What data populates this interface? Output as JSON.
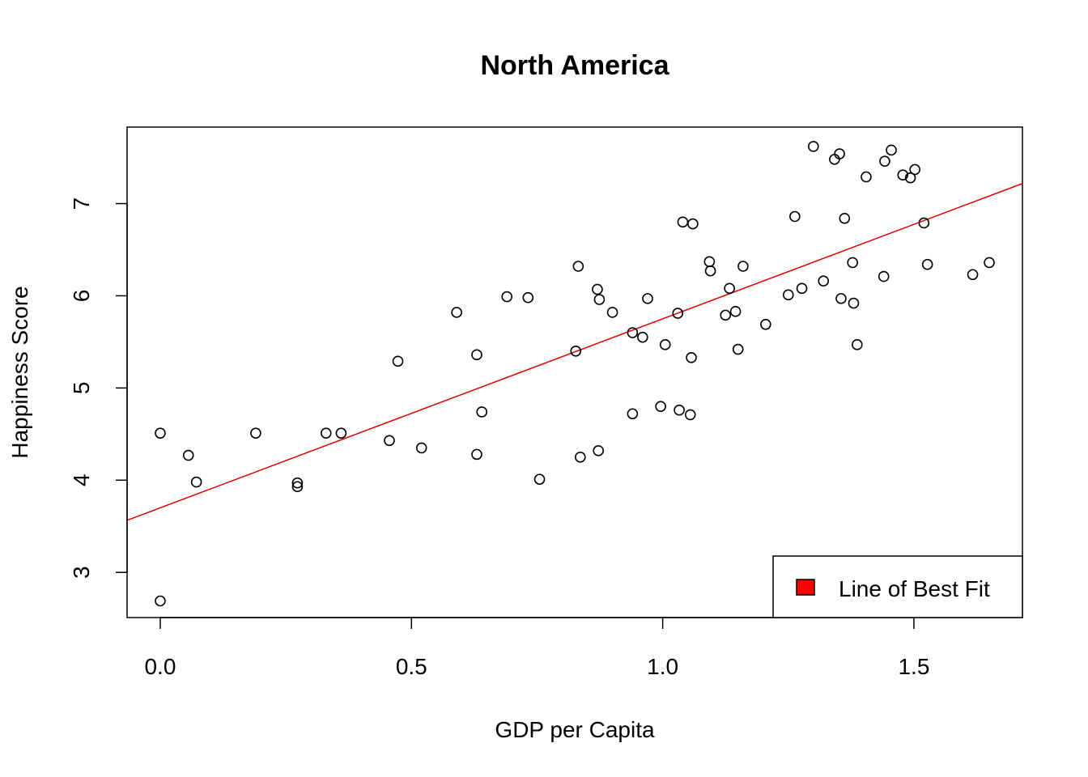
{
  "chart_data": {
    "type": "scatter",
    "title": "North America",
    "xlabel": "GDP per Capita",
    "ylabel": "Happiness Score",
    "xlim": [
      -0.066,
      1.716
    ],
    "ylim": [
      2.51,
      7.83
    ],
    "x_ticks": [
      0.0,
      0.5,
      1.0,
      1.5
    ],
    "x_tick_labels": [
      "0.0",
      "0.5",
      "1.0",
      "1.5"
    ],
    "y_ticks": [
      3,
      4,
      5,
      6,
      7
    ],
    "y_tick_labels": [
      "3",
      "4",
      "5",
      "6",
      "7"
    ],
    "grid": false,
    "legend": {
      "placement": "bottom-right",
      "entries": [
        {
          "label": "Line of Best Fit",
          "color": "#ff0000"
        }
      ]
    },
    "fit_line": {
      "intercept": 3.7,
      "slope": 2.05,
      "color": "#dd0000"
    },
    "points_x": [
      0.0,
      0.0,
      0.056,
      0.072,
      0.19,
      0.273,
      0.273,
      0.33,
      0.36,
      0.456,
      0.473,
      0.52,
      0.59,
      0.63,
      0.63,
      0.64,
      0.69,
      0.732,
      0.755,
      0.827,
      0.832,
      0.836,
      0.87,
      0.872,
      0.874,
      0.9,
      0.94,
      0.94,
      0.96,
      0.97,
      0.996,
      1.005,
      1.03,
      1.033,
      1.04,
      1.055,
      1.057,
      1.06,
      1.093,
      1.095,
      1.125,
      1.133,
      1.145,
      1.15,
      1.16,
      1.205,
      1.25,
      1.263,
      1.277,
      1.3,
      1.32,
      1.342,
      1.352,
      1.355,
      1.362,
      1.378,
      1.38,
      1.387,
      1.405,
      1.44,
      1.442,
      1.455,
      1.478,
      1.493,
      1.502,
      1.52,
      1.527,
      1.617,
      1.65
    ],
    "points_y": [
      4.51,
      2.69,
      4.27,
      3.98,
      4.51,
      3.97,
      3.93,
      4.51,
      4.51,
      4.43,
      5.29,
      4.35,
      5.82,
      5.36,
      4.28,
      4.74,
      5.99,
      5.98,
      4.01,
      5.4,
      6.32,
      4.25,
      6.07,
      4.32,
      5.96,
      5.82,
      5.6,
      4.72,
      5.55,
      5.97,
      4.8,
      5.47,
      5.81,
      4.76,
      6.8,
      4.71,
      5.33,
      6.78,
      6.37,
      6.27,
      5.79,
      6.08,
      5.83,
      5.42,
      6.32,
      5.69,
      6.01,
      6.86,
      6.08,
      7.62,
      6.16,
      7.48,
      7.54,
      5.97,
      6.84,
      6.36,
      5.92,
      5.47,
      7.29,
      6.21,
      7.46,
      7.58,
      7.31,
      7.28,
      7.37,
      6.79,
      6.34,
      6.23,
      6.36
    ]
  }
}
